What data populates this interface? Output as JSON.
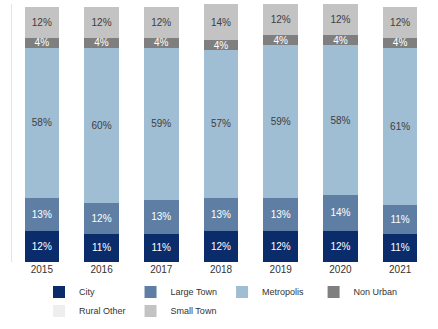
{
  "chart_data": {
    "type": "bar",
    "stacked": true,
    "data_labels": true,
    "tick_labels": "x",
    "legend": "bottom",
    "grid": false,
    "categories": [
      "2015",
      "2016",
      "2017",
      "2018",
      "2019",
      "2020",
      "2021"
    ],
    "ylim": [
      0,
      100
    ],
    "series": [
      {
        "name": "City",
        "color": "#0b2c6b",
        "values": [
          12,
          11,
          11,
          12,
          12,
          12,
          11
        ],
        "value_labels": [
          "12%",
          "11%",
          "11%",
          "12%",
          "12%",
          "12%",
          "11%"
        ]
      },
      {
        "name": "Large Town",
        "color": "#5e7fa3",
        "values": [
          13,
          12,
          13,
          13,
          13,
          14,
          11
        ],
        "value_labels": [
          "13%",
          "12%",
          "13%",
          "13%",
          "13%",
          "14%",
          "11%"
        ]
      },
      {
        "name": "Metropolis",
        "color": "#9fbdd3",
        "values": [
          58,
          60,
          59,
          57,
          59,
          58,
          61
        ],
        "value_labels": [
          "58%",
          "60%",
          "59%",
          "57%",
          "59%",
          "58%",
          "61%"
        ]
      },
      {
        "name": "Non Urban",
        "color": "#7f7f7f",
        "values": [
          4,
          4,
          4,
          4,
          4,
          4,
          4
        ],
        "value_labels": [
          "4%",
          "4%",
          "4%",
          "4%",
          "4%",
          "4%",
          "4%"
        ]
      },
      {
        "name": "Rural Other",
        "color": "#eeeeee",
        "data_labels": false,
        "values": [
          0,
          0,
          0,
          0,
          0,
          0,
          0
        ]
      },
      {
        "name": "Small Town",
        "color": "#c3c3c3",
        "values": [
          12,
          12,
          12,
          14,
          12,
          12,
          12
        ],
        "value_labels": [
          "12%",
          "12%",
          "12%",
          "14%",
          "12%",
          "12%",
          "12%"
        ]
      }
    ]
  }
}
